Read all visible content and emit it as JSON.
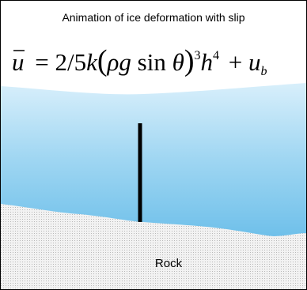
{
  "header": {
    "title": "Animation of ice deformation with slip"
  },
  "formula": {
    "parts": [
      "u",
      "= 2/5",
      "k",
      "(",
      "ρg",
      "sin",
      "θ",
      ")",
      "3",
      "h",
      "4",
      "+",
      "u",
      "b"
    ]
  },
  "labels": {
    "rock": "Rock"
  }
}
